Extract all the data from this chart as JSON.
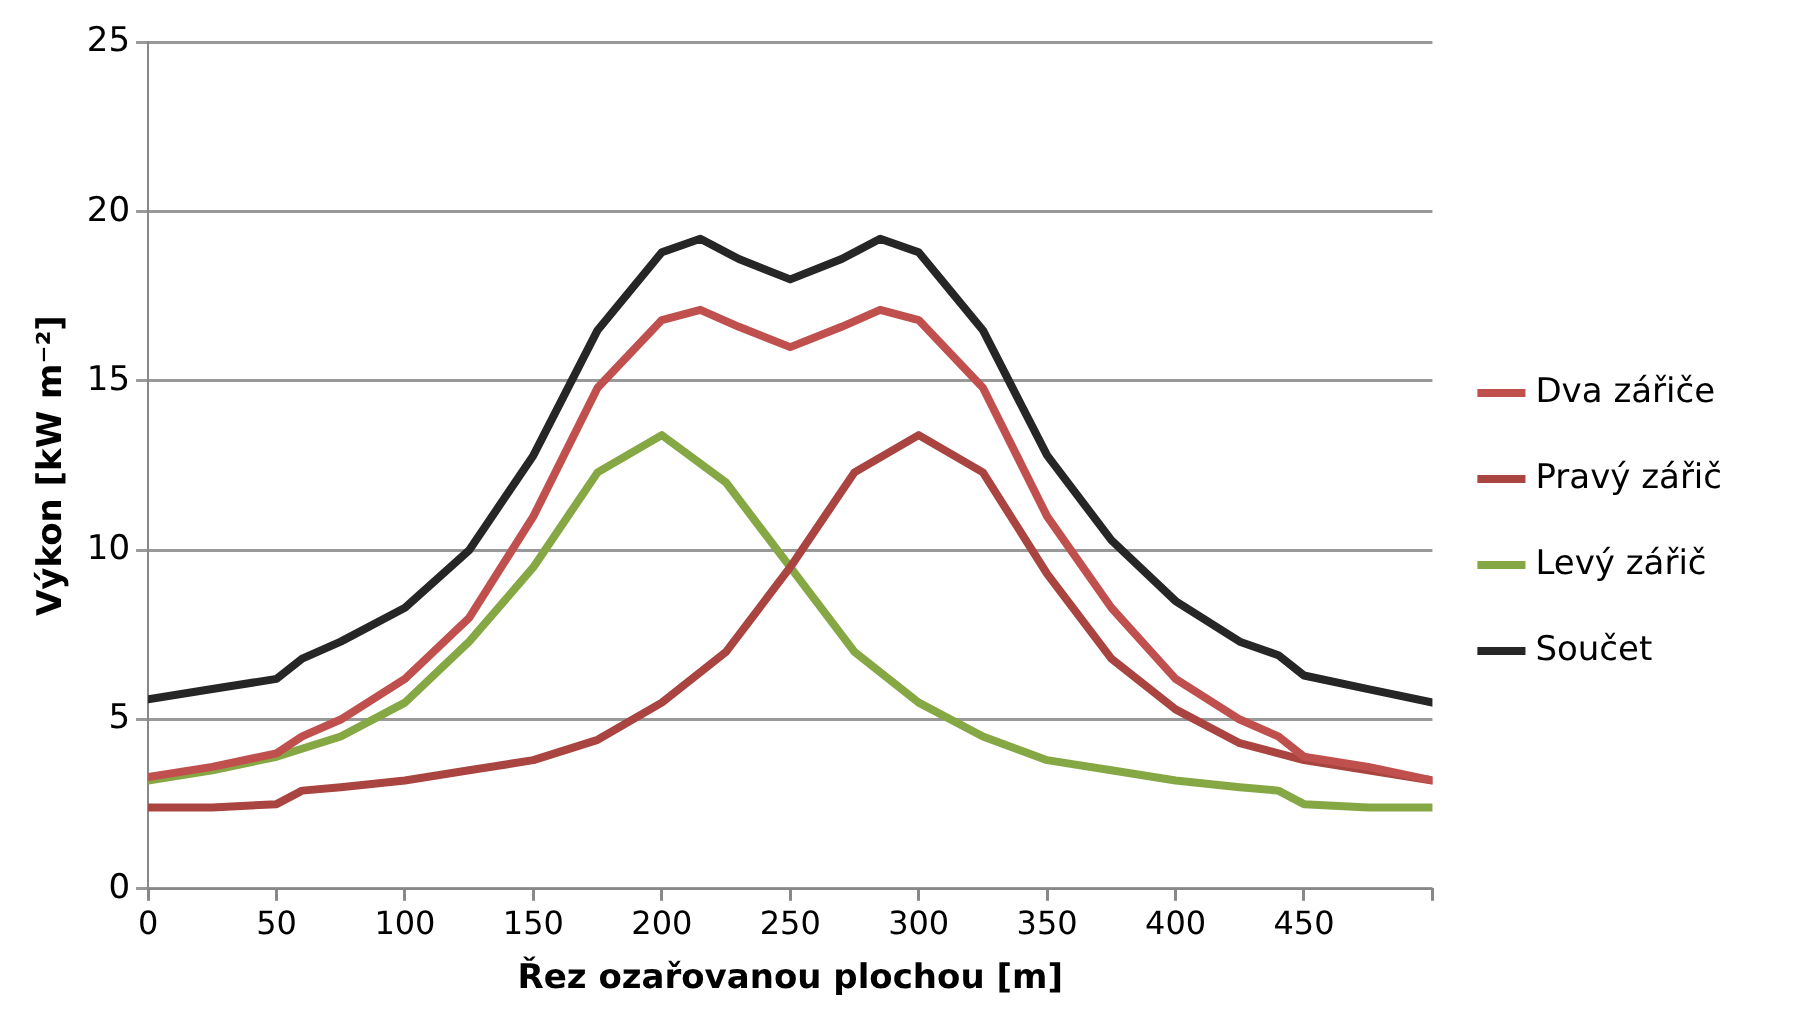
{
  "chart_data": {
    "type": "line",
    "xlabel": "Řez ozařovanou plochou [m]",
    "ylabel": "Výkon [kW m⁻²]",
    "xlim": [
      0,
      500
    ],
    "xticks": [
      0,
      50,
      100,
      150,
      200,
      250,
      300,
      350,
      400,
      450,
      {
        "value": 500,
        "label": null
      }
    ],
    "ylim": [
      0,
      25
    ],
    "yticks": [
      0,
      5,
      10,
      15,
      20,
      25
    ],
    "grid": "y",
    "legend": "right",
    "marker": "none",
    "line_style": "solid",
    "series": [
      {
        "name": "Dva zářiče",
        "color": "#c0504d",
        "x": [
          0,
          25,
          50,
          60,
          75,
          100,
          125,
          150,
          175,
          200,
          215,
          230,
          250,
          270,
          285,
          300,
          325,
          350,
          375,
          400,
          425,
          440,
          450,
          475,
          500
        ],
        "values": [
          3.3,
          3.6,
          4.0,
          4.5,
          5.0,
          6.2,
          8.0,
          11.0,
          14.8,
          16.8,
          17.1,
          16.6,
          16.0,
          16.6,
          17.1,
          16.8,
          14.8,
          11.0,
          8.3,
          6.2,
          5.0,
          4.5,
          3.9,
          3.6,
          3.2
        ]
      },
      {
        "name": "Pravý zářič",
        "color": "#a94440",
        "x": [
          0,
          25,
          50,
          60,
          75,
          100,
          125,
          150,
          175,
          200,
          225,
          250,
          275,
          300,
          325,
          350,
          375,
          400,
          425,
          450,
          475,
          500
        ],
        "values": [
          2.4,
          2.4,
          2.5,
          2.9,
          3.0,
          3.2,
          3.5,
          3.8,
          4.4,
          5.5,
          7.0,
          9.5,
          12.3,
          13.4,
          12.3,
          9.3,
          6.8,
          5.3,
          4.3,
          3.8,
          3.5,
          3.2
        ]
      },
      {
        "name": "Levý zářič",
        "color": "#86a844",
        "x": [
          0,
          25,
          50,
          75,
          100,
          125,
          150,
          175,
          200,
          225,
          250,
          275,
          300,
          325,
          350,
          375,
          400,
          425,
          440,
          450,
          475,
          500
        ],
        "values": [
          3.2,
          3.5,
          3.9,
          4.5,
          5.5,
          7.3,
          9.5,
          12.3,
          13.4,
          12.0,
          9.5,
          7.0,
          5.5,
          4.5,
          3.8,
          3.5,
          3.2,
          3.0,
          2.9,
          2.5,
          2.4,
          2.4
        ]
      },
      {
        "name": "Součet",
        "color": "#262626",
        "x": [
          0,
          25,
          50,
          60,
          75,
          100,
          125,
          150,
          175,
          200,
          215,
          230,
          250,
          270,
          285,
          300,
          325,
          350,
          375,
          400,
          425,
          440,
          450,
          475,
          500
        ],
        "values": [
          5.6,
          5.9,
          6.2,
          6.8,
          7.3,
          8.3,
          10.0,
          12.8,
          16.5,
          18.8,
          19.2,
          18.6,
          18.0,
          18.6,
          19.2,
          18.8,
          16.5,
          12.8,
          10.3,
          8.5,
          7.3,
          6.9,
          6.3,
          5.9,
          5.5
        ]
      }
    ]
  }
}
